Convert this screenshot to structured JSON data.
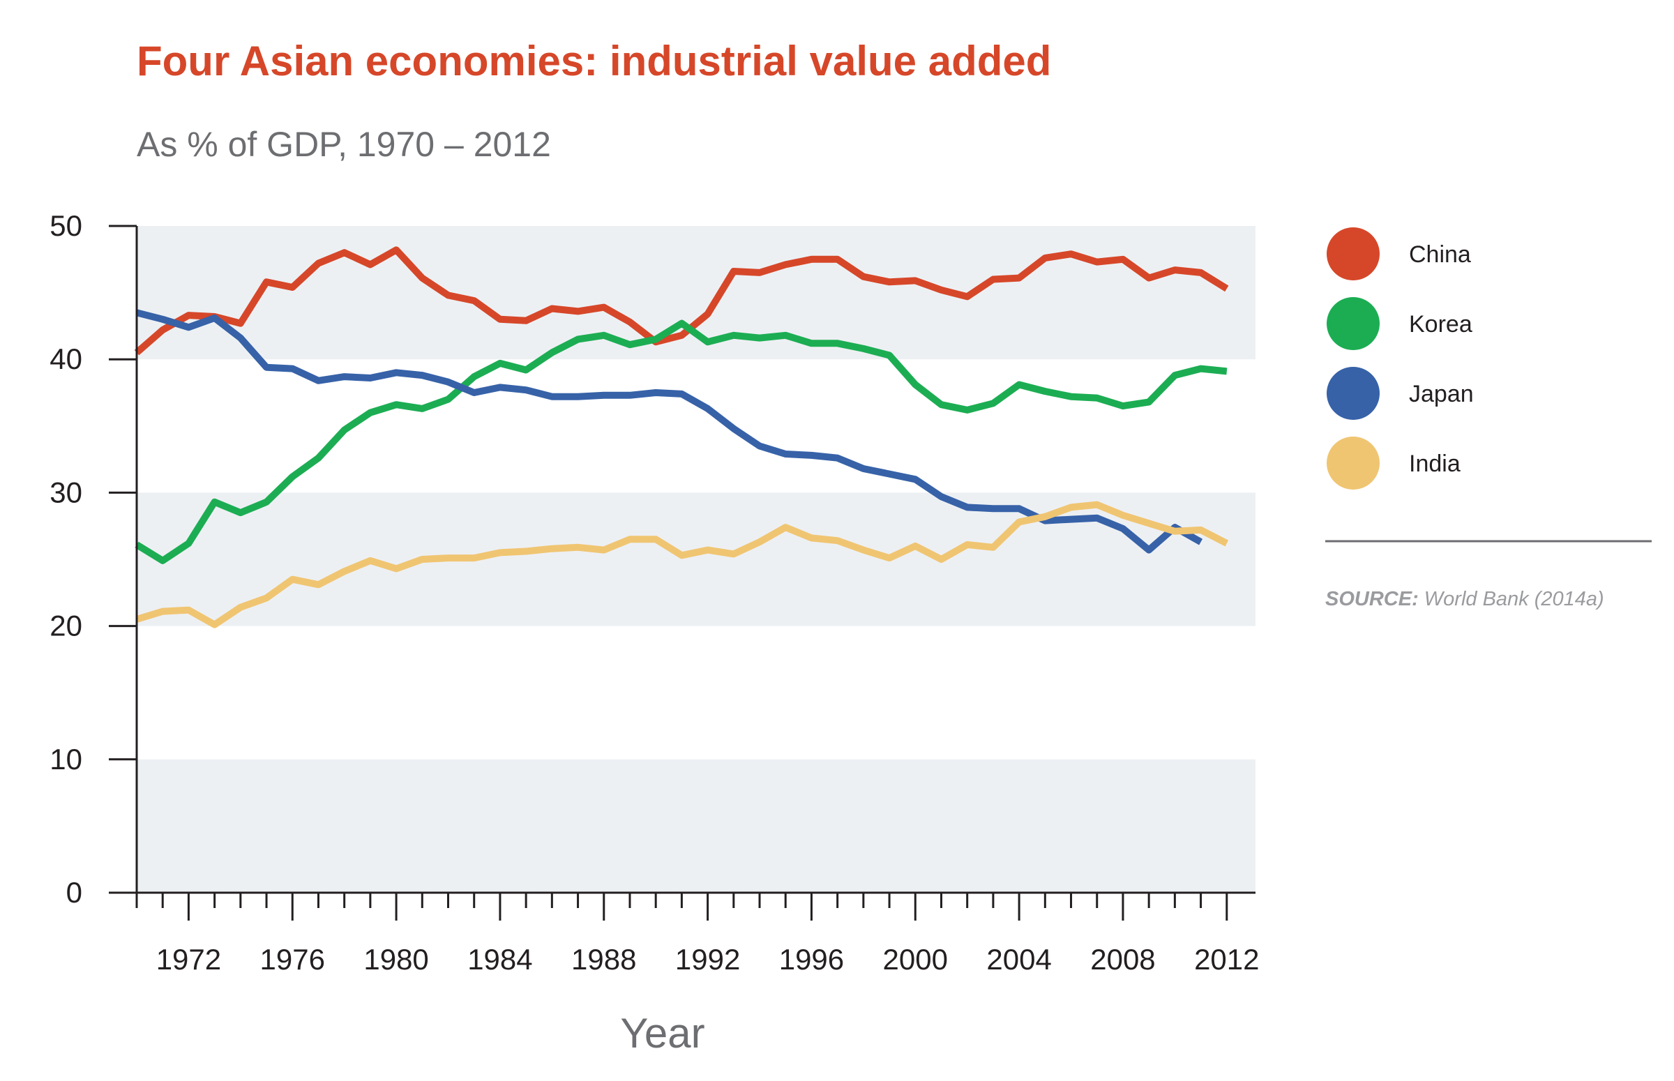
{
  "chart_data": {
    "type": "line",
    "title": "Four Asian economies: industrial value added",
    "subtitle": "As % of GDP, 1970 – 2012",
    "xlabel": "Year",
    "ylabel": "",
    "xlim": [
      1970,
      2013
    ],
    "ylim": [
      0,
      50
    ],
    "x_ticks": [
      1972,
      1976,
      1980,
      1984,
      1988,
      1992,
      1996,
      2000,
      2004,
      2008,
      2012
    ],
    "y_ticks": [
      0,
      10,
      20,
      30,
      40,
      50
    ],
    "grid": "alternating horizontal bands",
    "legend_position": "right",
    "x": [
      1970,
      1971,
      1972,
      1973,
      1974,
      1975,
      1976,
      1977,
      1978,
      1979,
      1980,
      1981,
      1982,
      1983,
      1984,
      1985,
      1986,
      1987,
      1988,
      1989,
      1990,
      1991,
      1992,
      1993,
      1994,
      1995,
      1996,
      1997,
      1998,
      1999,
      2000,
      2001,
      2002,
      2003,
      2004,
      2005,
      2006,
      2007,
      2008,
      2009,
      2010,
      2011,
      2012
    ],
    "series": [
      {
        "name": "China",
        "color": "#d64729",
        "values": [
          40.5,
          42.2,
          43.3,
          43.2,
          42.7,
          45.8,
          45.4,
          47.2,
          48.0,
          47.1,
          48.2,
          46.1,
          44.8,
          44.4,
          43.0,
          42.9,
          43.8,
          43.6,
          43.9,
          42.8,
          41.3,
          41.8,
          43.4,
          46.6,
          46.5,
          47.1,
          47.5,
          47.5,
          46.2,
          45.8,
          45.9,
          45.2,
          44.7,
          46.0,
          46.1,
          47.6,
          47.9,
          47.3,
          47.5,
          46.1,
          46.7,
          46.5,
          45.3
        ]
      },
      {
        "name": "Korea",
        "color": "#1cad53",
        "values": [
          26.1,
          24.9,
          26.2,
          29.3,
          28.5,
          29.3,
          31.2,
          32.6,
          34.7,
          36.0,
          36.6,
          36.3,
          37.0,
          38.7,
          39.7,
          39.2,
          40.5,
          41.5,
          41.8,
          41.1,
          41.5,
          42.7,
          41.3,
          41.8,
          41.6,
          41.8,
          41.2,
          41.2,
          40.8,
          40.3,
          38.1,
          36.6,
          36.2,
          36.7,
          38.1,
          37.6,
          37.2,
          37.1,
          36.5,
          36.8,
          38.8,
          39.3,
          39.1
        ]
      },
      {
        "name": "Japan",
        "color": "#3762a8",
        "values": [
          43.5,
          43.0,
          42.4,
          43.1,
          41.6,
          39.4,
          39.3,
          38.4,
          38.7,
          38.6,
          39.0,
          38.8,
          38.3,
          37.5,
          37.9,
          37.7,
          37.2,
          37.2,
          37.3,
          37.3,
          37.5,
          37.4,
          36.3,
          34.8,
          33.5,
          32.9,
          32.8,
          32.6,
          31.8,
          31.4,
          31.0,
          29.7,
          28.9,
          28.8,
          28.8,
          27.9,
          28.0,
          28.1,
          27.3,
          25.7,
          27.4,
          26.3,
          null
        ]
      },
      {
        "name": "India",
        "color": "#f0c572",
        "values": [
          20.5,
          21.1,
          21.2,
          20.1,
          21.4,
          22.1,
          23.5,
          23.1,
          24.1,
          24.9,
          24.3,
          25.0,
          25.1,
          25.1,
          25.5,
          25.6,
          25.8,
          25.9,
          25.7,
          26.5,
          26.5,
          25.3,
          25.7,
          25.4,
          26.3,
          27.4,
          26.6,
          26.4,
          25.7,
          25.1,
          26.0,
          25.0,
          26.1,
          25.9,
          27.8,
          28.2,
          28.9,
          29.1,
          28.3,
          27.7,
          27.1,
          27.2,
          26.2
        ]
      }
    ]
  },
  "source": {
    "label": "SOURCE:",
    "text": "World Bank (2014a)"
  }
}
